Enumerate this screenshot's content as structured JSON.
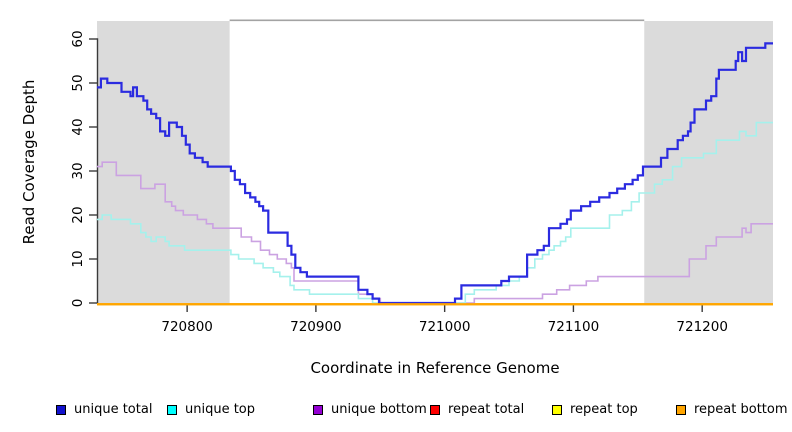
{
  "chart_data": {
    "type": "line",
    "subtype": "step-after",
    "title": "",
    "xlabel": "Coordinate in Reference Genome",
    "ylabel": "Read Coverage Depth",
    "xlim": [
      720730,
      721255
    ],
    "ylim": [
      0,
      60
    ],
    "x_ticks": [
      720800,
      720900,
      721000,
      721100,
      721200
    ],
    "y_ticks": [
      0,
      10,
      20,
      30,
      40,
      50,
      60
    ],
    "grid": false,
    "shaded_regions": [
      {
        "from": 720730,
        "to": 720833,
        "color": "#dbdbdb"
      },
      {
        "from": 721155,
        "to": 721255,
        "color": "#dbdbdb"
      }
    ],
    "top_bar": {
      "from": 720833,
      "to": 721155,
      "color": "#a3a3a3"
    },
    "axis_color": "#3a3a3a",
    "series": [
      {
        "name": "repeat total",
        "line_color": "#dd0000",
        "legend_color": "#ff0000",
        "width": 2,
        "points": [
          [
            720730,
            0
          ],
          [
            721255,
            0
          ]
        ]
      },
      {
        "name": "repeat top",
        "line_color": "#ffff00",
        "legend_color": "#ffff00",
        "width": 2,
        "points": [
          [
            720730,
            0
          ],
          [
            721255,
            0
          ]
        ]
      },
      {
        "name": "unique bottom",
        "line_color": "#cba2e2",
        "legend_color": "#9400d3",
        "width": 1.6,
        "points": [
          [
            720730,
            31
          ],
          [
            720734,
            32
          ],
          [
            720745,
            29
          ],
          [
            720764,
            26
          ],
          [
            720775,
            27
          ],
          [
            720783,
            23
          ],
          [
            720788,
            22
          ],
          [
            720791,
            21
          ],
          [
            720797,
            20
          ],
          [
            720808,
            19
          ],
          [
            720815,
            18
          ],
          [
            720820,
            17
          ],
          [
            720842,
            15
          ],
          [
            720850,
            14
          ],
          [
            720857,
            12
          ],
          [
            720864,
            11
          ],
          [
            720870,
            10
          ],
          [
            720877,
            9
          ],
          [
            720881,
            8
          ],
          [
            720883,
            5
          ],
          [
            720933,
            2
          ],
          [
            720944,
            1
          ],
          [
            720950,
            0
          ],
          [
            721023,
            1
          ],
          [
            721076,
            2
          ],
          [
            721087,
            3
          ],
          [
            721097,
            4
          ],
          [
            721110,
            5
          ],
          [
            721119,
            6
          ],
          [
            721190,
            10
          ],
          [
            721203,
            13
          ],
          [
            721211,
            15
          ],
          [
            721231,
            17
          ],
          [
            721234,
            16
          ],
          [
            721238,
            18
          ],
          [
            721255,
            18
          ]
        ]
      },
      {
        "name": "unique top",
        "line_color": "#a5f1ec",
        "legend_color": "#00ffff",
        "width": 1.6,
        "points": [
          [
            720730,
            19
          ],
          [
            720734,
            20
          ],
          [
            720741,
            19
          ],
          [
            720756,
            18
          ],
          [
            720764,
            16
          ],
          [
            720768,
            15
          ],
          [
            720772,
            14
          ],
          [
            720776,
            15
          ],
          [
            720783,
            14
          ],
          [
            720786,
            13
          ],
          [
            720798,
            12
          ],
          [
            720834,
            11
          ],
          [
            720840,
            10
          ],
          [
            720852,
            9
          ],
          [
            720859,
            8
          ],
          [
            720867,
            7
          ],
          [
            720872,
            6
          ],
          [
            720880,
            4
          ],
          [
            720883,
            3
          ],
          [
            720895,
            2
          ],
          [
            720933,
            1
          ],
          [
            720944,
            0
          ],
          [
            721016,
            2
          ],
          [
            721023,
            3
          ],
          [
            721040,
            4
          ],
          [
            721050,
            5
          ],
          [
            721058,
            6
          ],
          [
            721064,
            8
          ],
          [
            721070,
            10
          ],
          [
            721076,
            11
          ],
          [
            721081,
            12
          ],
          [
            721085,
            13
          ],
          [
            721090,
            14
          ],
          [
            721094,
            15
          ],
          [
            721098,
            17
          ],
          [
            721128,
            20
          ],
          [
            721138,
            21
          ],
          [
            721145,
            23
          ],
          [
            721151,
            25
          ],
          [
            721163,
            27
          ],
          [
            721169,
            28
          ],
          [
            721177,
            31
          ],
          [
            721184,
            33
          ],
          [
            721201,
            34
          ],
          [
            721211,
            37
          ],
          [
            721229,
            39
          ],
          [
            721234,
            38
          ],
          [
            721242,
            41
          ],
          [
            721255,
            41
          ]
        ]
      },
      {
        "name": "unique total",
        "line_color": "#2b2be0",
        "legend_color": "#1212ce",
        "width": 2.2,
        "points": [
          [
            720730,
            49
          ],
          [
            720733,
            51
          ],
          [
            720738,
            50
          ],
          [
            720749,
            48
          ],
          [
            720756,
            47
          ],
          [
            720758,
            49
          ],
          [
            720761,
            47
          ],
          [
            720766,
            46
          ],
          [
            720769,
            44
          ],
          [
            720772,
            43
          ],
          [
            720776,
            42
          ],
          [
            720779,
            39
          ],
          [
            720783,
            38
          ],
          [
            720786,
            41
          ],
          [
            720792,
            40
          ],
          [
            720796,
            38
          ],
          [
            720799,
            36
          ],
          [
            720802,
            34
          ],
          [
            720806,
            33
          ],
          [
            720812,
            32
          ],
          [
            720816,
            31
          ],
          [
            720834,
            30
          ],
          [
            720837,
            28
          ],
          [
            720841,
            27
          ],
          [
            720845,
            25
          ],
          [
            720849,
            24
          ],
          [
            720853,
            23
          ],
          [
            720856,
            22
          ],
          [
            720859,
            21
          ],
          [
            720863,
            16
          ],
          [
            720878,
            13
          ],
          [
            720881,
            11
          ],
          [
            720884,
            8
          ],
          [
            720888,
            7
          ],
          [
            720893,
            6
          ],
          [
            720933,
            3
          ],
          [
            720940,
            2
          ],
          [
            720944,
            1
          ],
          [
            720949,
            0
          ],
          [
            721008,
            1
          ],
          [
            721013,
            4
          ],
          [
            721044,
            5
          ],
          [
            721050,
            6
          ],
          [
            721064,
            11
          ],
          [
            721072,
            12
          ],
          [
            721077,
            13
          ],
          [
            721081,
            17
          ],
          [
            721090,
            18
          ],
          [
            721095,
            19
          ],
          [
            721098,
            21
          ],
          [
            721106,
            22
          ],
          [
            721113,
            23
          ],
          [
            721120,
            24
          ],
          [
            721128,
            25
          ],
          [
            721134,
            26
          ],
          [
            721140,
            27
          ],
          [
            721146,
            28
          ],
          [
            721150,
            29
          ],
          [
            721154,
            31
          ],
          [
            721168,
            33
          ],
          [
            721173,
            35
          ],
          [
            721181,
            37
          ],
          [
            721185,
            38
          ],
          [
            721189,
            39
          ],
          [
            721191,
            41
          ],
          [
            721194,
            44
          ],
          [
            721203,
            46
          ],
          [
            721207,
            47
          ],
          [
            721211,
            51
          ],
          [
            721213,
            53
          ],
          [
            721226,
            55
          ],
          [
            721228,
            57
          ],
          [
            721231,
            55
          ],
          [
            721234,
            58
          ],
          [
            721249,
            59
          ],
          [
            721255,
            59
          ]
        ]
      },
      {
        "name": "repeat bottom",
        "line_color": "#ffa500",
        "legend_color": "#ffa500",
        "width": 2.2,
        "points": [
          [
            720730,
            0
          ],
          [
            721255,
            0
          ]
        ]
      }
    ],
    "legend": {
      "position": "bottom",
      "items": [
        "unique total",
        "unique top",
        "unique bottom",
        "repeat total",
        "repeat top",
        "repeat bottom"
      ]
    }
  }
}
